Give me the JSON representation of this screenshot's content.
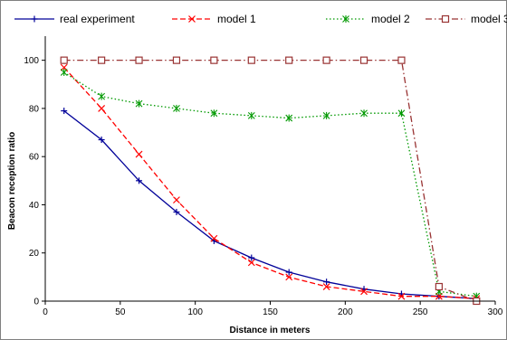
{
  "chart_data": {
    "type": "line",
    "title": "",
    "xlabel": "Distance in meters",
    "ylabel": "Beacon reception ratio",
    "xlim": [
      0,
      300
    ],
    "ylim": [
      0,
      110
    ],
    "xticks": [
      0,
      50,
      100,
      150,
      200,
      250,
      300
    ],
    "yticks": [
      0,
      20,
      40,
      60,
      80,
      100
    ],
    "grid": false,
    "legend_position": "top",
    "x": [
      12.5,
      37.5,
      62.5,
      87.5,
      112.5,
      137.5,
      162.5,
      187.5,
      212.5,
      237.5,
      262.5,
      287.5
    ],
    "series": [
      {
        "name": "real experiment",
        "color": "#000099",
        "marker": "plus",
        "dash": "solid",
        "values": [
          79,
          67,
          50,
          37,
          25,
          18,
          12,
          8,
          5,
          3,
          2,
          1
        ]
      },
      {
        "name": "model 1",
        "color": "#ff0000",
        "marker": "x",
        "dash": "dashed",
        "values": [
          97,
          80,
          61,
          42,
          26,
          16,
          10,
          6,
          4,
          2,
          2,
          1
        ]
      },
      {
        "name": "model 2",
        "color": "#009900",
        "marker": "asterisk",
        "dash": "dotted",
        "values": [
          95,
          85,
          82,
          80,
          78,
          77,
          76,
          77,
          78,
          78,
          4,
          2
        ]
      },
      {
        "name": "model 3",
        "color": "#993333",
        "marker": "square",
        "dash": "dashdot",
        "values": [
          100,
          100,
          100,
          100,
          100,
          100,
          100,
          100,
          100,
          100,
          6,
          0
        ]
      }
    ]
  }
}
